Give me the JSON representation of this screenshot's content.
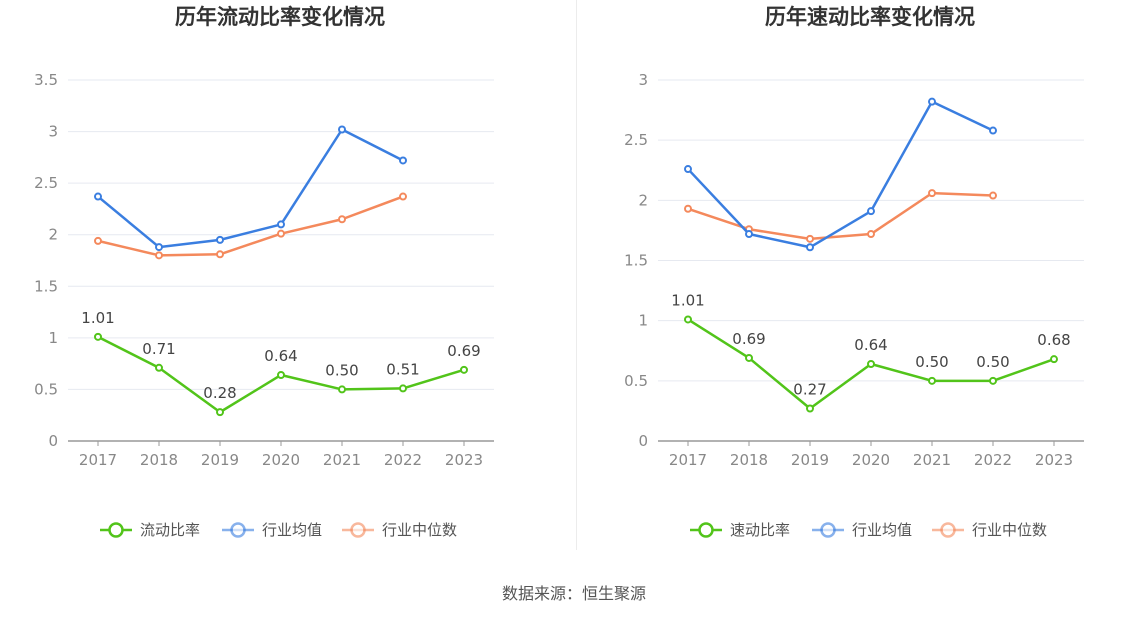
{
  "source_text": "数据来源：恒生聚源",
  "chart_data": [
    {
      "type": "line",
      "title": "历年流动比率变化情况",
      "categories": [
        "2017",
        "2018",
        "2019",
        "2020",
        "2021",
        "2022",
        "2023"
      ],
      "ylim": [
        0,
        3.5
      ],
      "yticks": [
        "0",
        "0.5",
        "1",
        "1.5",
        "2",
        "2.5",
        "3",
        "3.5"
      ],
      "grid": true,
      "legend_position": "bottom",
      "series": [
        {
          "name": "流动比率",
          "color": "#52c41a",
          "values": [
            1.01,
            0.71,
            0.28,
            0.64,
            0.5,
            0.51,
            0.69
          ],
          "labels": [
            "1.01",
            "0.71",
            "0.28",
            "0.64",
            "0.50",
            "0.51",
            "0.69"
          ]
        },
        {
          "name": "行业均值",
          "color": "#3a7ee0",
          "values": [
            2.37,
            1.88,
            1.95,
            2.1,
            3.02,
            2.72,
            null
          ]
        },
        {
          "name": "行业中位数",
          "color": "#f4895c",
          "values": [
            1.94,
            1.8,
            1.81,
            2.01,
            2.15,
            2.37,
            null
          ]
        }
      ]
    },
    {
      "type": "line",
      "title": "历年速动比率变化情况",
      "categories": [
        "2017",
        "2018",
        "2019",
        "2020",
        "2021",
        "2022",
        "2023"
      ],
      "ylim": [
        0,
        3
      ],
      "yticks": [
        "0",
        "0.5",
        "1",
        "1.5",
        "2",
        "2.5",
        "3"
      ],
      "grid": true,
      "legend_position": "bottom",
      "series": [
        {
          "name": "速动比率",
          "color": "#52c41a",
          "values": [
            1.01,
            0.69,
            0.27,
            0.64,
            0.5,
            0.5,
            0.68
          ],
          "labels": [
            "1.01",
            "0.69",
            "0.27",
            "0.64",
            "0.50",
            "0.50",
            "0.68"
          ]
        },
        {
          "name": "行业均值",
          "color": "#3a7ee0",
          "values": [
            2.26,
            1.72,
            1.61,
            1.91,
            2.82,
            2.58,
            null
          ]
        },
        {
          "name": "行业中位数",
          "color": "#f4895c",
          "values": [
            1.93,
            1.76,
            1.68,
            1.72,
            2.06,
            2.04,
            null
          ]
        }
      ]
    }
  ]
}
